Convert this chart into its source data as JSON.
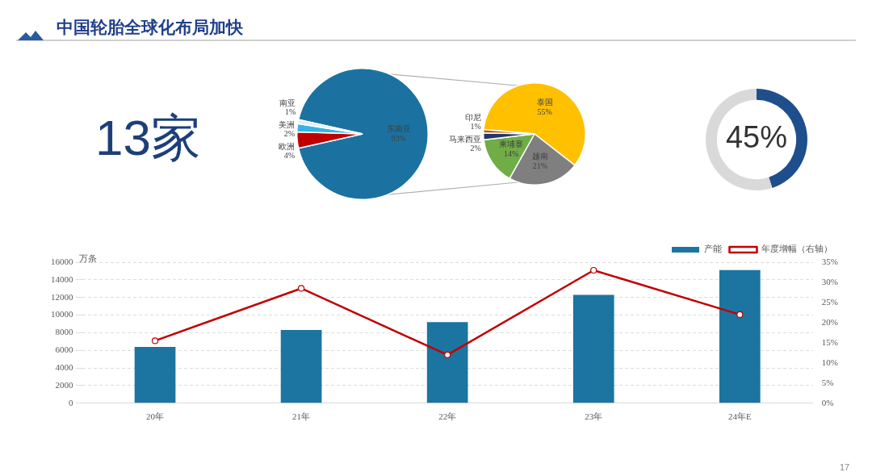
{
  "chart_data": [
    {
      "type": "other",
      "title": "中国轮胎全球化布局加快",
      "annotations": [
        "13家",
        "17"
      ]
    },
    {
      "type": "pie",
      "categories": [
        "东南亚",
        "欧洲",
        "美洲",
        "南亚"
      ],
      "values": [
        93,
        4,
        2,
        1
      ],
      "colors": [
        "#1b72a0",
        "#c00000",
        "#35b3e6",
        "#e3eef6"
      ],
      "value_labels": [
        "93%",
        "4%",
        "2%",
        "1%"
      ]
    },
    {
      "type": "pie",
      "categories": [
        "泰国",
        "越南",
        "柬埔寨",
        "马来西亚",
        "印尼"
      ],
      "values": [
        55,
        21,
        14,
        2,
        1
      ],
      "colors": [
        "#ffc000",
        "#7f7f7f",
        "#70ad47",
        "#203864",
        "#c55a11"
      ],
      "value_labels": [
        "55%",
        "21%",
        "14%",
        "2%",
        "1%"
      ]
    },
    {
      "type": "donut",
      "categories": [
        null,
        null
      ],
      "values": [
        45,
        55
      ],
      "colors": [
        "#1f4e8c",
        "#d9d9d9"
      ],
      "value_labels": [
        "45%",
        null
      ]
    },
    {
      "type": "bar",
      "categories": [
        "20年",
        "21年",
        "22年",
        "23年",
        "24年E"
      ],
      "ylabel": "万条",
      "ylim": [
        0,
        16000
      ],
      "yticks": [
        0,
        2000,
        4000,
        6000,
        8000,
        10000,
        12000,
        14000,
        16000
      ],
      "y2lim": [
        0,
        35
      ],
      "y2ticks": [
        {
          "value": 0,
          "label": "0%"
        },
        {
          "value": 5,
          "label": "5%"
        },
        {
          "value": 10,
          "label": "10%"
        },
        {
          "value": 15,
          "label": "15%"
        },
        {
          "value": 20,
          "label": "20%"
        },
        {
          "value": 25,
          "label": "25%"
        },
        {
          "value": 30,
          "label": "30%"
        },
        {
          "value": 35,
          "label": "35%"
        }
      ],
      "grid": "y",
      "legend": "top right",
      "marker": "circle",
      "series": [
        {
          "name": "产能",
          "type": "bar",
          "color": "#1b75a0",
          "values": [
            6400,
            8300,
            9200,
            12300,
            15100
          ]
        },
        {
          "name": "年度增幅（右轴）",
          "type": "line",
          "axis": "y2",
          "color": "#c00000",
          "values": [
            15.5,
            28.5,
            12,
            33,
            22
          ]
        }
      ]
    }
  ]
}
